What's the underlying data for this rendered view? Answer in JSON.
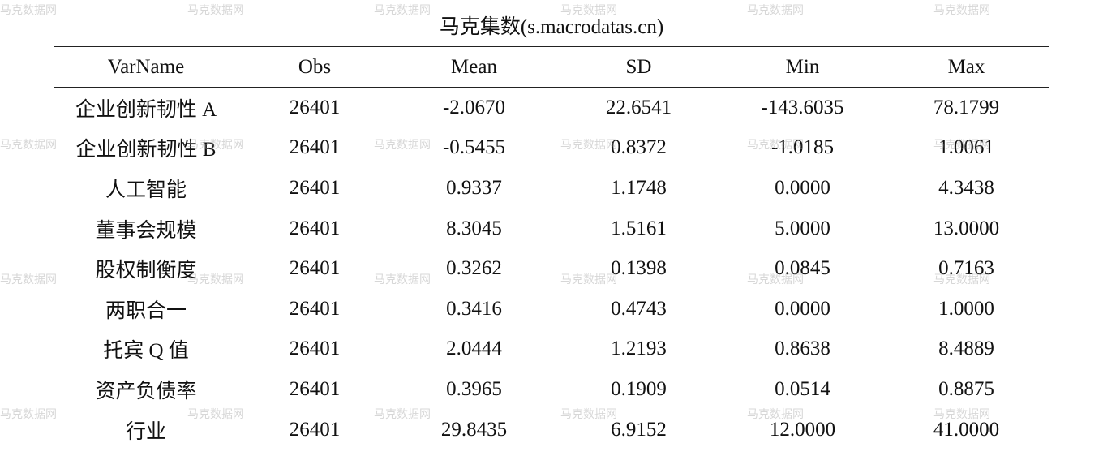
{
  "title": "马克集数(s.macrodatas.cn)",
  "watermark": "马克数据网",
  "table": {
    "headers": [
      "VarName",
      "Obs",
      "Mean",
      "SD",
      "Min",
      "Max"
    ],
    "rows": [
      [
        "企业创新韧性 A",
        "26401",
        "-2.0670",
        "22.6541",
        "-143.6035",
        "78.1799"
      ],
      [
        "企业创新韧性 B",
        "26401",
        "-0.5455",
        "0.8372",
        "-1.0185",
        "1.0061"
      ],
      [
        "人工智能",
        "26401",
        "0.9337",
        "1.1748",
        "0.0000",
        "4.3438"
      ],
      [
        "董事会规模",
        "26401",
        "8.3045",
        "1.5161",
        "5.0000",
        "13.0000"
      ],
      [
        "股权制衡度",
        "26401",
        "0.3262",
        "0.1398",
        "0.0845",
        "0.7163"
      ],
      [
        "两职合一",
        "26401",
        "0.3416",
        "0.4743",
        "0.0000",
        "1.0000"
      ],
      [
        "托宾 Q 值",
        "26401",
        "2.0444",
        "1.2193",
        "0.8638",
        "8.4889"
      ],
      [
        "资产负债率",
        "26401",
        "0.3965",
        "0.1909",
        "0.0514",
        "0.8875"
      ],
      [
        "行业",
        "26401",
        "29.8435",
        "6.9152",
        "12.0000",
        "41.0000"
      ]
    ]
  }
}
